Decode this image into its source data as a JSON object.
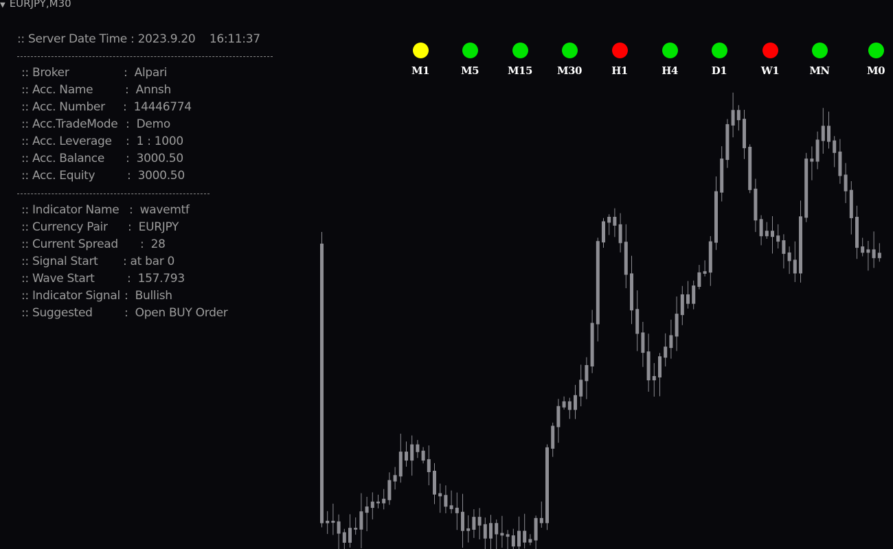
{
  "window": {
    "title": "EURJPY,M30"
  },
  "colors": {
    "background": "#08080c",
    "candle": "#8e8e94",
    "text": "#9c9c9c",
    "bullish": "#00e400",
    "bearish": "#ff0000",
    "neutral": "#ffff00"
  },
  "panel": {
    "server_time": ":: Server Date Time : 2023.9.20    16:11:37",
    "account": [
      {
        "label": ":: Broker",
        "value": ":  Alpari"
      },
      {
        "label": ":: Acc. Name",
        "value": ":  Annsh"
      },
      {
        "label": ":: Acc. Number",
        "value": ":  14446774"
      },
      {
        "label": ":: Acc.TradeMode",
        "value": ":  Demo"
      },
      {
        "label": ":: Acc. Leverage",
        "value": ":  1 : 1000"
      },
      {
        "label": ":: Acc. Balance",
        "value": ":  3000.50"
      },
      {
        "label": ":: Acc. Equity",
        "value": ":  3000.50"
      }
    ],
    "indicator": [
      {
        "label": ":: Indicator Name",
        "value": ":  wavemtf"
      },
      {
        "label": ":: Currency Pair",
        "value": ":  EURJPY"
      },
      {
        "label": ":: Current Spread",
        "value": ":  28"
      },
      {
        "label": ":: Signal Start",
        "value": ": at bar 0"
      },
      {
        "label": ":: Wave Start",
        "value": ":  157.793"
      },
      {
        "label": ":: Indicator Signal",
        "value": ":  Bullish"
      },
      {
        "label": ":: Suggested",
        "value": ":  Open BUY Order"
      }
    ]
  },
  "timeframes": [
    {
      "label": "M1",
      "status": "neutral"
    },
    {
      "label": "M5",
      "status": "bullish"
    },
    {
      "label": "M15",
      "status": "bullish"
    },
    {
      "label": "M30",
      "status": "bullish"
    },
    {
      "label": "H1",
      "status": "bearish"
    },
    {
      "label": "H4",
      "status": "bullish"
    },
    {
      "label": "D1",
      "status": "bullish"
    },
    {
      "label": "W1",
      "status": "bearish"
    },
    {
      "label": "MN",
      "status": "bullish"
    },
    {
      "label": "M0",
      "status": "bullish"
    }
  ]
}
